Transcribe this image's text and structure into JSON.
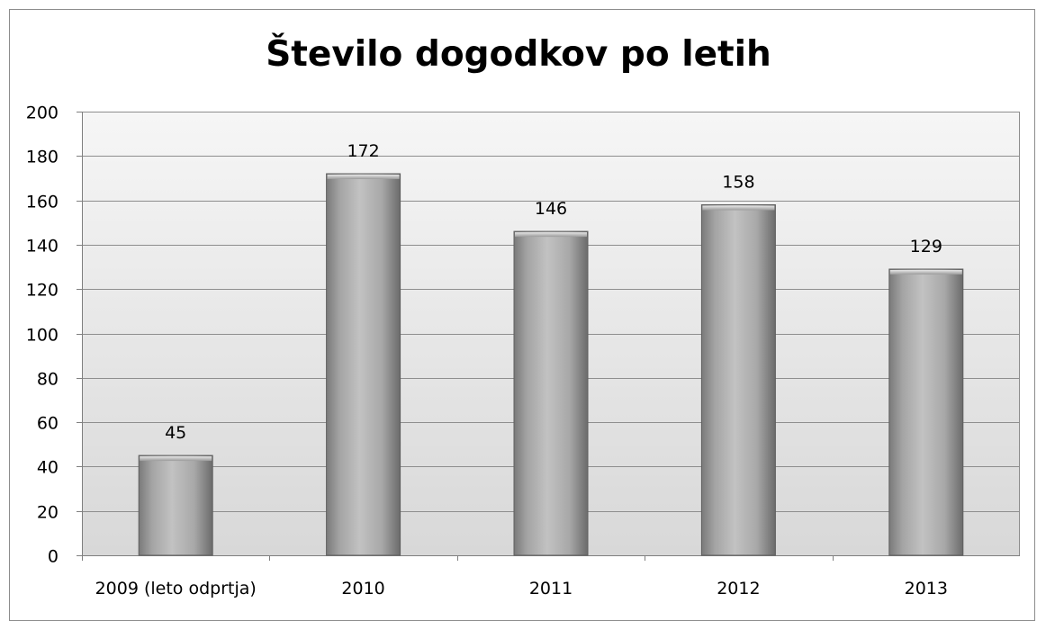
{
  "chart_data": {
    "type": "bar",
    "title": "Število dogodkov po letih",
    "categories": [
      "2009 (leto odprtja)",
      "2010",
      "2011",
      "2012",
      "2013"
    ],
    "values": [
      45,
      172,
      146,
      158,
      129
    ],
    "data_labels": [
      "45",
      "172",
      "146",
      "158",
      "129"
    ],
    "ylim": [
      0,
      200
    ],
    "ytick_step": 20,
    "yticks": [
      "0",
      "20",
      "40",
      "60",
      "80",
      "100",
      "120",
      "140",
      "160",
      "180",
      "200"
    ],
    "xlabel": "",
    "ylabel": "",
    "grid": true,
    "legend": "none",
    "colors": {
      "bar_light": "#d6d6d6",
      "bar_mid": "#a9a9a9",
      "bar_dark": "#6f6f6f",
      "plot_bg_top": "#f4f4f4",
      "plot_bg_bottom": "#d9d9d9",
      "gridline": "#8e8e8e",
      "axis": "#7f7f7f"
    }
  }
}
